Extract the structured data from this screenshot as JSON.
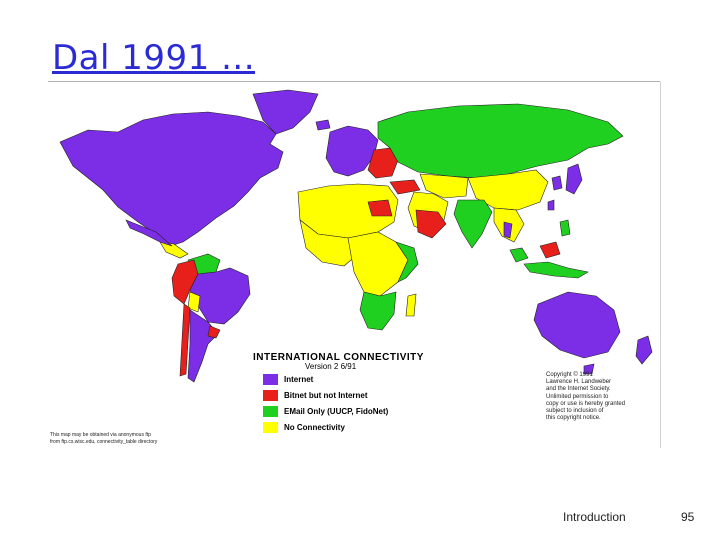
{
  "slide": {
    "title": "Dal 1991 ...",
    "footer_label": "Introduction",
    "page_number": "95"
  },
  "map": {
    "legend_title": "INTERNATIONAL CONNECTIVITY",
    "legend_version": "Version 2   6/91",
    "categories": [
      {
        "key": "internet",
        "label": "Internet",
        "color": "#7b2ee6"
      },
      {
        "key": "bitnet",
        "label": "Bitnet but not Internet",
        "color": "#e8201c"
      },
      {
        "key": "email",
        "label": "EMail Only (UUCP, FidoNet)",
        "color": "#20d020"
      },
      {
        "key": "none",
        "label": "No Connectivity",
        "color": "#ffff00"
      }
    ],
    "copyright_lines": [
      "Copyright © 1991",
      "Lawrence H. Landweber",
      "and the Internet Society.",
      "Unlimited permission to",
      "copy or use is hereby granted",
      "subject to inclusion of",
      "this copyright notice."
    ],
    "source_lines": [
      "This map may be obtained via anonymous ftp",
      "from ftp.cs.wisc.edu, connectivity_table directory"
    ]
  }
}
